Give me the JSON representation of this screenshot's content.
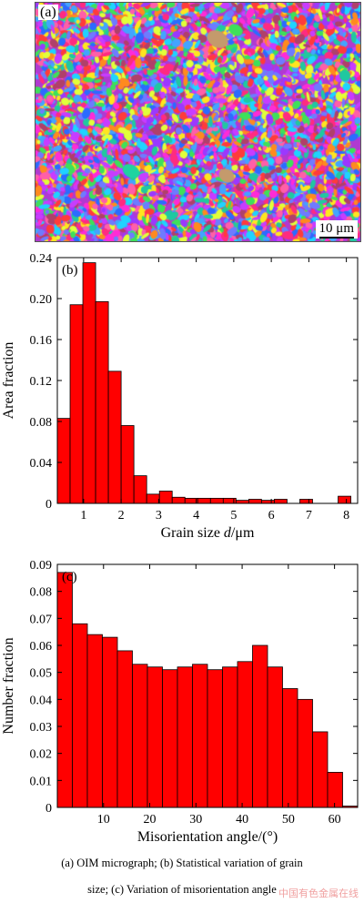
{
  "panel_a": {
    "label": "(a)",
    "scale_bar": "10 μm"
  },
  "chart_data": [
    {
      "type": "bar",
      "panel_label": "(b)",
      "xlabel_prefix": "Grain size ",
      "xlabel_var": "d",
      "xlabel_unit": "/μm",
      "ylabel": "Area fraction",
      "xlim": [
        0.3,
        8.3
      ],
      "ylim": [
        0,
        0.24
      ],
      "bin_width": 0.34,
      "x_ticks": [
        1,
        2,
        3,
        4,
        5,
        6,
        7,
        8
      ],
      "y_ticks": [
        0,
        0.04,
        0.08,
        0.12,
        0.16,
        0.2,
        0.24
      ],
      "y_tick_labels": [
        "0",
        "0.04",
        "0.08",
        "0.12",
        "0.16",
        "0.20",
        "0.24"
      ],
      "bin_centers": [
        0.47,
        0.81,
        1.15,
        1.49,
        1.83,
        2.17,
        2.51,
        2.85,
        3.19,
        3.53,
        3.87,
        4.21,
        4.55,
        4.89,
        5.23,
        5.57,
        5.91,
        6.25,
        6.93,
        7.95
      ],
      "values": [
        0.083,
        0.194,
        0.235,
        0.197,
        0.129,
        0.076,
        0.027,
        0.009,
        0.012,
        0.006,
        0.005,
        0.005,
        0.005,
        0.005,
        0.003,
        0.004,
        0.003,
        0.004,
        0.004,
        0.007
      ],
      "bar_color": "#ff0000"
    },
    {
      "type": "bar",
      "panel_label": "(c)",
      "xlabel": "Misorientation angle/(°)",
      "ylabel": "Number fraction",
      "xlim": [
        0,
        65
      ],
      "ylim": [
        0,
        0.09
      ],
      "bin_width": 3.25,
      "x_ticks": [
        10,
        20,
        30,
        40,
        50,
        60
      ],
      "y_ticks": [
        0,
        0.01,
        0.02,
        0.03,
        0.04,
        0.05,
        0.06,
        0.07,
        0.08,
        0.09
      ],
      "y_tick_labels": [
        "0",
        "0.01",
        "0.02",
        "0.03",
        "0.04",
        "0.05",
        "0.06",
        "0.07",
        "0.08",
        "0.09"
      ],
      "bin_centers": [
        1.625,
        4.875,
        8.125,
        11.375,
        14.625,
        17.875,
        21.125,
        24.375,
        27.625,
        30.875,
        34.125,
        37.375,
        40.625,
        43.875,
        47.125,
        50.375,
        53.625,
        56.875,
        60.125,
        63.375
      ],
      "values": [
        0.087,
        0.068,
        0.064,
        0.063,
        0.058,
        0.053,
        0.052,
        0.051,
        0.052,
        0.053,
        0.051,
        0.052,
        0.054,
        0.06,
        0.052,
        0.044,
        0.04,
        0.028,
        0.013,
        0.0005
      ],
      "bar_color": "#ff0000"
    }
  ],
  "caption": {
    "line1": "(a) OIM micrograph; (b) Statistical variation of grain",
    "line2": "size; (c) Variation of misorientation angle"
  },
  "watermark": "中国有色金属在线"
}
